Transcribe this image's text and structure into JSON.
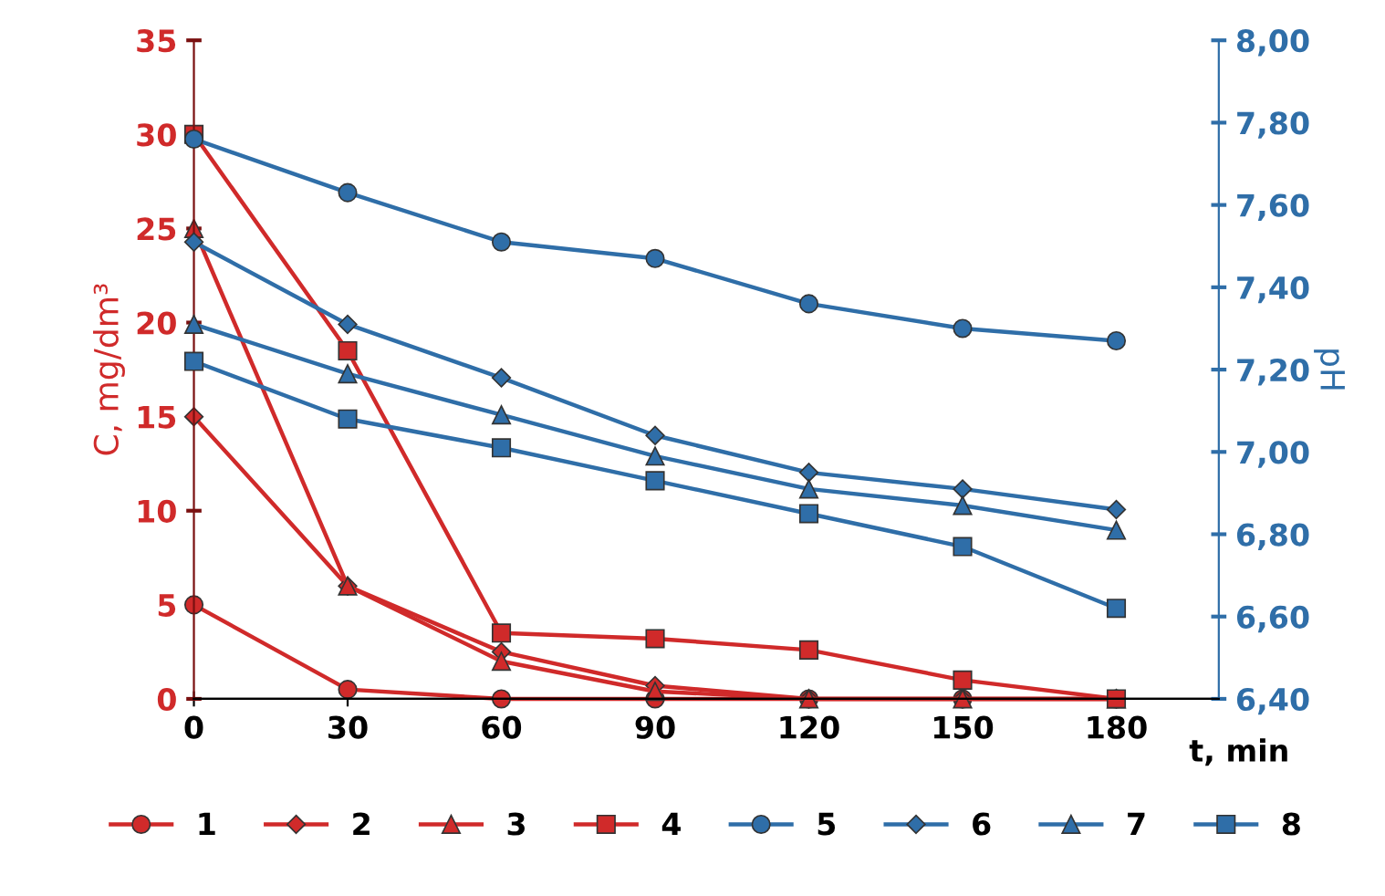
{
  "chart_data": {
    "type": "line",
    "xlabel": "t, min",
    "ylabel": "C, mg/dm³",
    "y2label": "pH",
    "x": [
      0,
      30,
      60,
      90,
      120,
      150,
      180
    ],
    "xlim": [
      0,
      200
    ],
    "xticks": [
      0,
      30,
      60,
      90,
      120,
      150,
      180
    ],
    "ylim": [
      0,
      35
    ],
    "yticks": [
      0,
      5,
      10,
      15,
      20,
      25,
      30,
      35
    ],
    "y2lim": [
      6.4,
      8.0
    ],
    "y2ticks": [
      {
        "value": 6.4,
        "label": "6,40"
      },
      {
        "value": 6.6,
        "label": "6,60"
      },
      {
        "value": 6.8,
        "label": "6,80"
      },
      {
        "value": 7.0,
        "label": "7,00"
      },
      {
        "value": 7.2,
        "label": "7,20"
      },
      {
        "value": 7.4,
        "label": "7,40"
      },
      {
        "value": 7.6,
        "label": "7,60"
      },
      {
        "value": 7.8,
        "label": "7,80"
      },
      {
        "value": 8.0,
        "label": "8,00"
      }
    ],
    "grid": false,
    "legend": "bottom",
    "line_style": "solid",
    "series": [
      {
        "name": "1",
        "color": "#d02a2a",
        "marker": "circle",
        "values": [
          5,
          0.5,
          0,
          0,
          0,
          0,
          0
        ]
      },
      {
        "name": "2",
        "color": "#d02a2a",
        "marker": "diamond",
        "values": [
          15,
          6,
          2.5,
          0.7,
          0,
          0,
          0
        ]
      },
      {
        "name": "3",
        "color": "#d02a2a",
        "marker": "triangle",
        "values": [
          25,
          6,
          2,
          0.4,
          0,
          0,
          0
        ]
      },
      {
        "name": "4",
        "color": "#d02a2a",
        "marker": "square",
        "values": [
          30,
          18.5,
          3.5,
          3.2,
          2.6,
          1.0,
          0
        ]
      },
      {
        "name": "5",
        "color": "#2f6ea8",
        "marker": "circle",
        "axis": "y2",
        "values": [
          7.76,
          7.63,
          7.51,
          7.47,
          7.36,
          7.3,
          7.27
        ]
      },
      {
        "name": "6",
        "color": "#2f6ea8",
        "marker": "diamond",
        "axis": "y2",
        "values": [
          7.51,
          7.31,
          7.18,
          7.04,
          6.95,
          6.91,
          6.86
        ]
      },
      {
        "name": "7",
        "color": "#2f6ea8",
        "marker": "triangle",
        "axis": "y2",
        "values": [
          7.31,
          7.19,
          7.09,
          6.99,
          6.91,
          6.87,
          6.81
        ]
      },
      {
        "name": "8",
        "color": "#2f6ea8",
        "marker": "square",
        "axis": "y2",
        "values": [
          7.22,
          7.08,
          7.01,
          6.93,
          6.85,
          6.77,
          6.62
        ]
      }
    ]
  }
}
